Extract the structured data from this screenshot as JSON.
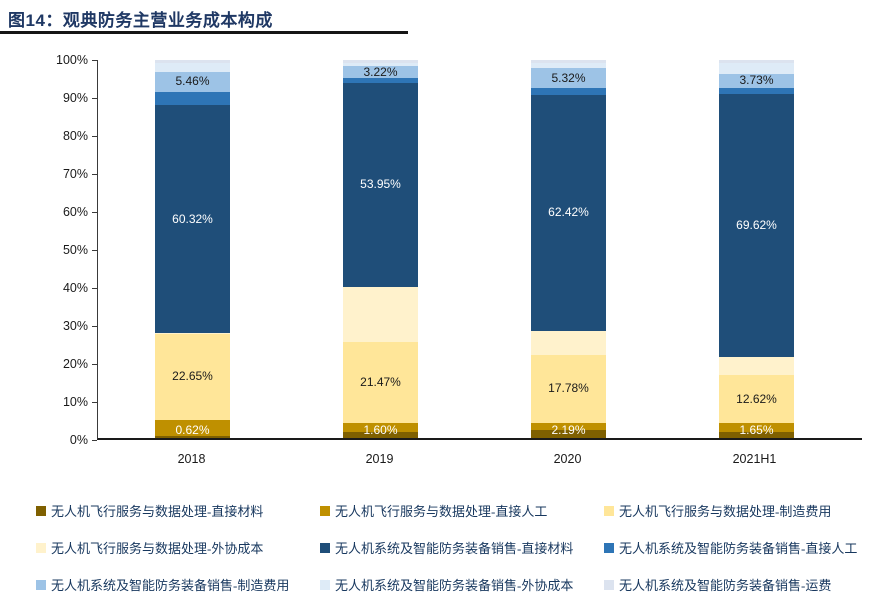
{
  "figure": {
    "title": "图14：观典防务主营业务成本构成"
  },
  "axes": {
    "y_ticks": [
      "100%",
      "90%",
      "80%",
      "70%",
      "60%",
      "50%",
      "40%",
      "30%",
      "20%",
      "10%",
      "0%"
    ],
    "x_labels": [
      "2018",
      "2019",
      "2020",
      "2021H1"
    ]
  },
  "chart_data": {
    "type": "bar",
    "stacked": true,
    "title": "观典防务主营业务成本构成",
    "unit": "percent",
    "categories": [
      "2018",
      "2019",
      "2020",
      "2021H1"
    ],
    "ylim": [
      0,
      100
    ],
    "grid": false,
    "legend_position": "bottom",
    "visible_data_labels": {
      "无人机飞行服务与数据处理-直接材料": [
        "0.62%",
        "1.60%",
        "2.19%",
        "1.65%"
      ],
      "无人机飞行服务与数据处理-制造费用": [
        "22.65%",
        "21.47%",
        "17.78%",
        "12.62%"
      ],
      "无人机系统及智能防务装备销售-直接材料": [
        "60.32%",
        "53.95%",
        "62.42%",
        "69.62%"
      ],
      "无人机系统及智能防务装备销售-制造费用": [
        "5.46%",
        "3.22%",
        "5.32%",
        "3.73%"
      ]
    },
    "series": [
      {
        "name": "无人机飞行服务与数据处理-直接材料",
        "color": "#7F6000",
        "values": [
          0.62,
          1.6,
          2.19,
          1.65
        ],
        "show_label": true,
        "label_color": "#FFFFFF",
        "estimated": false
      },
      {
        "name": "无人机飞行服务与数据处理-直接人工",
        "color": "#BF9000",
        "values": [
          4.2,
          2.4,
          1.9,
          2.3
        ],
        "show_label": false,
        "estimated": true
      },
      {
        "name": "无人机飞行服务与数据处理-制造费用",
        "color": "#FFE699",
        "values": [
          22.65,
          21.47,
          17.78,
          12.62
        ],
        "show_label": true,
        "label_color": "#1a1a1a",
        "estimated": false
      },
      {
        "name": "无人机飞行服务与数据处理-外协成本",
        "color": "#FFF2CC",
        "values": [
          0.2,
          14.5,
          6.5,
          4.8
        ],
        "show_label": false,
        "estimated": true
      },
      {
        "name": "无人机系统及智能防务装备销售-直接材料",
        "color": "#1F4E79",
        "values": [
          60.32,
          53.95,
          62.42,
          69.62
        ],
        "show_label": true,
        "label_color": "#FFFFFF",
        "estimated": false
      },
      {
        "name": "无人机系统及智能防务装备销售-直接人工",
        "color": "#2E75B6",
        "values": [
          3.5,
          1.2,
          1.8,
          1.6
        ],
        "show_label": false,
        "estimated": true
      },
      {
        "name": "无人机系统及智能防务装备销售-制造费用",
        "color": "#9DC3E6",
        "values": [
          5.46,
          3.22,
          5.32,
          3.73
        ],
        "show_label": true,
        "label_color": "#1a1a1a",
        "estimated": false
      },
      {
        "name": "无人机系统及智能防务装备销售-外协成本",
        "color": "#DEEBF7",
        "values": [
          2.2,
          0.8,
          1.2,
          2.8
        ],
        "show_label": false,
        "estimated": true
      },
      {
        "name": "无人机系统及智能防务装备销售-运费",
        "color": "#DCE3EF",
        "values": [
          0.85,
          0.86,
          0.89,
          0.88
        ],
        "show_label": false,
        "estimated": true
      }
    ]
  }
}
